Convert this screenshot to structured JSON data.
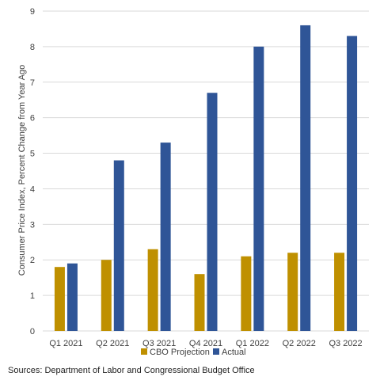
{
  "chart_data": {
    "type": "bar",
    "categories": [
      "Q1 2021",
      "Q2 2021",
      "Q3 2021",
      "Q4 2021",
      "Q1 2022",
      "Q2 2022",
      "Q3 2022"
    ],
    "series": [
      {
        "name": "CBO Projection",
        "values": [
          1.8,
          2.0,
          2.3,
          1.6,
          2.1,
          2.2,
          2.2
        ],
        "color": "#BF9000"
      },
      {
        "name": "Actual",
        "values": [
          1.9,
          4.8,
          5.3,
          6.7,
          8.0,
          8.6,
          8.3
        ],
        "color": "#2F5597"
      }
    ],
    "ylabel": "Consumer Price Index, Percent Change from Year Ago",
    "ylim": [
      0,
      9
    ],
    "yticks": [
      0,
      1,
      2,
      3,
      4,
      5,
      6,
      7,
      8,
      9
    ],
    "grid": true,
    "legend": "bottom"
  },
  "source_note": "Sources: Department of Labor and Congressional Budget Office"
}
